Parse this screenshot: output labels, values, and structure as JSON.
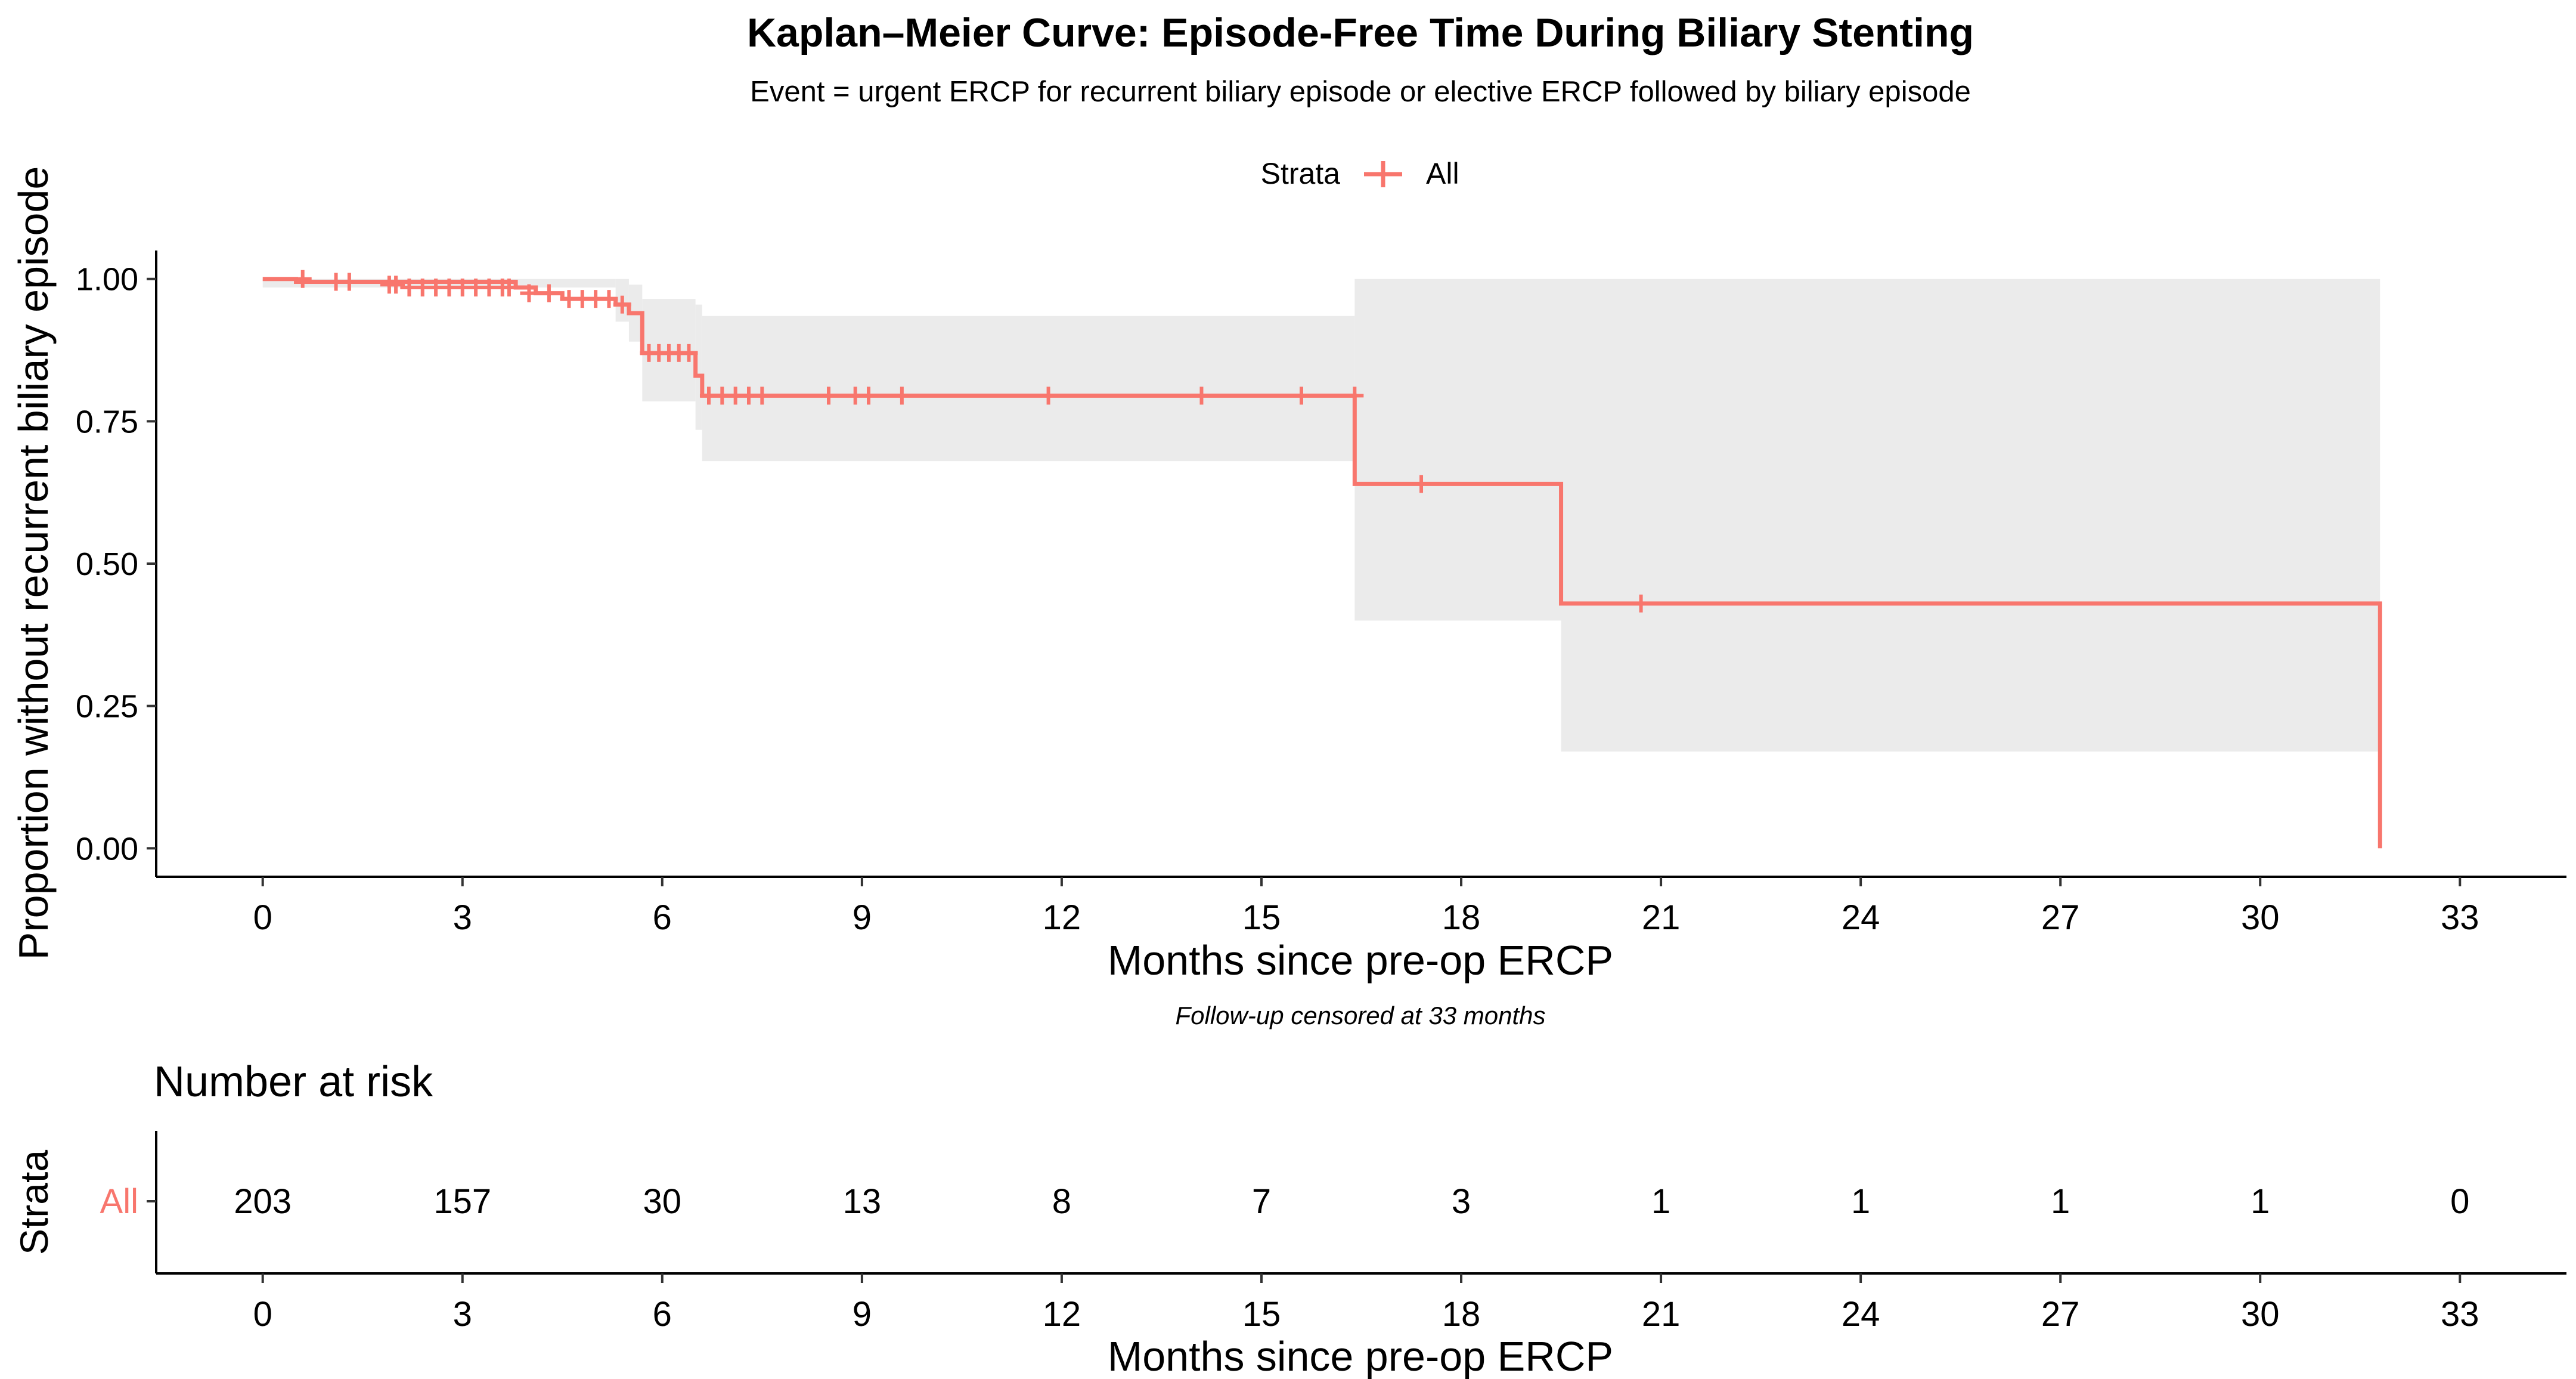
{
  "chart_data": [
    {
      "type": "line",
      "subtype": "kaplan-meier step curve with confidence band and censor marks",
      "title": "Kaplan–Meier Curve: Episode-Free Time During Biliary Stenting",
      "subtitle": "Event = urgent ERCP for recurrent biliary episode or elective ERCP followed by biliary episode",
      "caption": "Follow-up censored at 33 months",
      "xlabel": "Months since pre-op ERCP",
      "ylabel": "Proportion without recurrent biliary episode",
      "xlim": [
        -1.6,
        34.6
      ],
      "ylim": [
        -0.05,
        1.05
      ],
      "x_ticks": [
        0,
        3,
        6,
        9,
        12,
        15,
        18,
        21,
        24,
        27,
        30,
        33
      ],
      "y_ticks": [
        0,
        0.25,
        0.5,
        0.75,
        1.0
      ],
      "y_tick_labels": [
        "0.00",
        "0.25",
        "0.50",
        "0.75",
        "1.00"
      ],
      "grid": false,
      "legend": {
        "title": "Strata",
        "position": "top",
        "entries": [
          "All"
        ]
      },
      "series": [
        {
          "name": "All",
          "color": "#f8766d",
          "steps": [
            {
              "x": 0,
              "y": 1.0
            },
            {
              "x": 0.5,
              "y": 0.995
            },
            {
              "x": 3.8,
              "y": 0.985
            },
            {
              "x": 4.1,
              "y": 0.975
            },
            {
              "x": 4.5,
              "y": 0.965
            },
            {
              "x": 5.3,
              "y": 0.955
            },
            {
              "x": 5.5,
              "y": 0.94
            },
            {
              "x": 5.7,
              "y": 0.87
            },
            {
              "x": 6.5,
              "y": 0.83
            },
            {
              "x": 6.6,
              "y": 0.795
            },
            {
              "x": 16.4,
              "y": 0.64
            },
            {
              "x": 19.5,
              "y": 0.43
            },
            {
              "x": 31.8,
              "y": 0.0
            }
          ],
          "end_x": 31.8,
          "confidence_band": [
            {
              "x": 0,
              "lower": 0.985,
              "upper": 1.0
            },
            {
              "x": 5.3,
              "lower": 0.925,
              "upper": 1.0
            },
            {
              "x": 5.5,
              "lower": 0.89,
              "upper": 0.99
            },
            {
              "x": 5.7,
              "lower": 0.785,
              "upper": 0.965
            },
            {
              "x": 6.5,
              "lower": 0.735,
              "upper": 0.955
            },
            {
              "x": 6.6,
              "lower": 0.68,
              "upper": 0.935
            },
            {
              "x": 16.4,
              "lower": 0.4,
              "upper": 1.0
            },
            {
              "x": 19.5,
              "lower": 0.17,
              "upper": 1.0
            }
          ],
          "band_end_x": 31.8,
          "censored": [
            {
              "x": 0.6,
              "y": 1.0
            },
            {
              "x": 1.1,
              "y": 0.995
            },
            {
              "x": 1.3,
              "y": 0.995
            },
            {
              "x": 1.9,
              "y": 0.99
            },
            {
              "x": 2.0,
              "y": 0.99
            },
            {
              "x": 2.2,
              "y": 0.985
            },
            {
              "x": 2.4,
              "y": 0.985
            },
            {
              "x": 2.6,
              "y": 0.985
            },
            {
              "x": 2.8,
              "y": 0.985
            },
            {
              "x": 3.0,
              "y": 0.985
            },
            {
              "x": 3.2,
              "y": 0.985
            },
            {
              "x": 3.4,
              "y": 0.985
            },
            {
              "x": 3.6,
              "y": 0.985
            },
            {
              "x": 3.7,
              "y": 0.985
            },
            {
              "x": 4.0,
              "y": 0.975
            },
            {
              "x": 4.3,
              "y": 0.975
            },
            {
              "x": 4.6,
              "y": 0.965
            },
            {
              "x": 4.8,
              "y": 0.965
            },
            {
              "x": 5.0,
              "y": 0.965
            },
            {
              "x": 5.2,
              "y": 0.965
            },
            {
              "x": 5.4,
              "y": 0.955
            },
            {
              "x": 5.8,
              "y": 0.87
            },
            {
              "x": 5.95,
              "y": 0.87
            },
            {
              "x": 6.1,
              "y": 0.87
            },
            {
              "x": 6.25,
              "y": 0.87
            },
            {
              "x": 6.4,
              "y": 0.87
            },
            {
              "x": 6.7,
              "y": 0.795
            },
            {
              "x": 6.9,
              "y": 0.795
            },
            {
              "x": 7.1,
              "y": 0.795
            },
            {
              "x": 7.3,
              "y": 0.795
            },
            {
              "x": 7.5,
              "y": 0.795
            },
            {
              "x": 8.5,
              "y": 0.795
            },
            {
              "x": 8.9,
              "y": 0.795
            },
            {
              "x": 9.1,
              "y": 0.795
            },
            {
              "x": 9.6,
              "y": 0.795
            },
            {
              "x": 11.8,
              "y": 0.795
            },
            {
              "x": 14.1,
              "y": 0.795
            },
            {
              "x": 15.6,
              "y": 0.795
            },
            {
              "x": 16.4,
              "y": 0.795
            },
            {
              "x": 17.4,
              "y": 0.64
            },
            {
              "x": 20.7,
              "y": 0.43
            }
          ]
        }
      ]
    },
    {
      "type": "table",
      "title": "Number at risk",
      "ylabel": "Strata",
      "xlabel": "Months since pre-op ERCP",
      "x_ticks": [
        0,
        3,
        6,
        9,
        12,
        15,
        18,
        21,
        24,
        27,
        30,
        33
      ],
      "rows": [
        {
          "label": "All",
          "color": "#f8766d",
          "values": [
            {
              "x": 0,
              "value": "203"
            },
            {
              "x": 3,
              "value": "157"
            },
            {
              "x": 6,
              "value": "30"
            },
            {
              "x": 9,
              "value": "13"
            },
            {
              "x": 12,
              "value": "8"
            },
            {
              "x": 15,
              "value": "7"
            },
            {
              "x": 18,
              "value": "3"
            },
            {
              "x": 21,
              "value": "1"
            },
            {
              "x": 24,
              "value": "1"
            },
            {
              "x": 27,
              "value": "1"
            },
            {
              "x": 30,
              "value": "1"
            },
            {
              "x": 33,
              "value": "0"
            }
          ]
        }
      ]
    }
  ]
}
